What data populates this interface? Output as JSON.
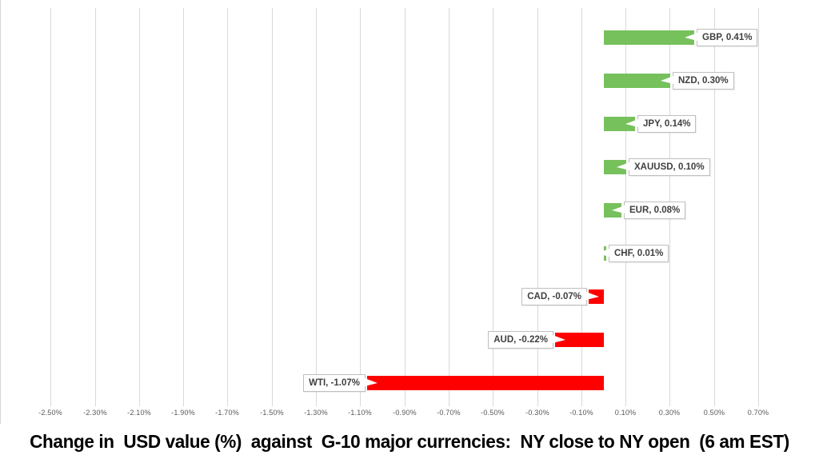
{
  "title": "Change in  USD value (%)  against  G-10 major currencies:  NY close to NY open  (6 am EST)",
  "colors": {
    "positive_bar": "#76C15C",
    "negative_bar": "#FE0000",
    "gridline": "#D9D9D9",
    "axis_text": "#595959",
    "label_text": "#3F3F3F",
    "label_border": "#BFBFBF",
    "background": "#FFFFFF",
    "title_text": "#000000"
  },
  "chart_data": {
    "type": "bar",
    "orientation": "horizontal",
    "title": "Change in  USD value (%)  against  G-10 major currencies:  NY close to NY open  (6 am EST)",
    "xlabel": "",
    "ylabel": "",
    "grid": true,
    "legend": "none",
    "xlim": [
      -2.6,
      0.8
    ],
    "categories": [
      "GBP",
      "NZD",
      "JPY",
      "XAUUSD",
      "EUR",
      "CHF",
      "CAD",
      "AUD",
      "WTI"
    ],
    "values": [
      0.41,
      0.3,
      0.14,
      0.1,
      0.08,
      0.01,
      -0.07,
      -0.22,
      -1.07
    ],
    "series": [
      {
        "name": "GBP",
        "value": 0.41,
        "label": "GBP, 0.41%"
      },
      {
        "name": "NZD",
        "value": 0.3,
        "label": "NZD, 0.30%"
      },
      {
        "name": "JPY",
        "value": 0.14,
        "label": "JPY, 0.14%"
      },
      {
        "name": "XAUUSD",
        "value": 0.1,
        "label": "XAUUSD, 0.10%"
      },
      {
        "name": "EUR",
        "value": 0.08,
        "label": "EUR, 0.08%"
      },
      {
        "name": "CHF",
        "value": 0.01,
        "label": "CHF, 0.01%"
      },
      {
        "name": "CAD",
        "value": -0.07,
        "label": "CAD, -0.07%"
      },
      {
        "name": "AUD",
        "value": -0.22,
        "label": "AUD, -0.22%"
      },
      {
        "name": "WTI",
        "value": -1.07,
        "label": "WTI, -1.07%"
      }
    ],
    "x_ticks": [
      {
        "value": -2.5,
        "label": "-2.50%"
      },
      {
        "value": -2.3,
        "label": "-2.30%"
      },
      {
        "value": -2.1,
        "label": "-2.10%"
      },
      {
        "value": -1.9,
        "label": "-1.90%"
      },
      {
        "value": -1.7,
        "label": "-1.70%"
      },
      {
        "value": -1.5,
        "label": "-1.50%"
      },
      {
        "value": -1.3,
        "label": "-1.30%"
      },
      {
        "value": -1.1,
        "label": "-1.10%"
      },
      {
        "value": -0.9,
        "label": "-0.90%"
      },
      {
        "value": -0.7,
        "label": "-0.70%"
      },
      {
        "value": -0.5,
        "label": "-0.50%"
      },
      {
        "value": -0.3,
        "label": "-0.30%"
      },
      {
        "value": -0.1,
        "label": "-0.10%"
      },
      {
        "value": 0.1,
        "label": "0.10%"
      },
      {
        "value": 0.3,
        "label": "0.30%"
      },
      {
        "value": 0.5,
        "label": "0.50%"
      },
      {
        "value": 0.7,
        "label": "0.70%"
      }
    ]
  }
}
